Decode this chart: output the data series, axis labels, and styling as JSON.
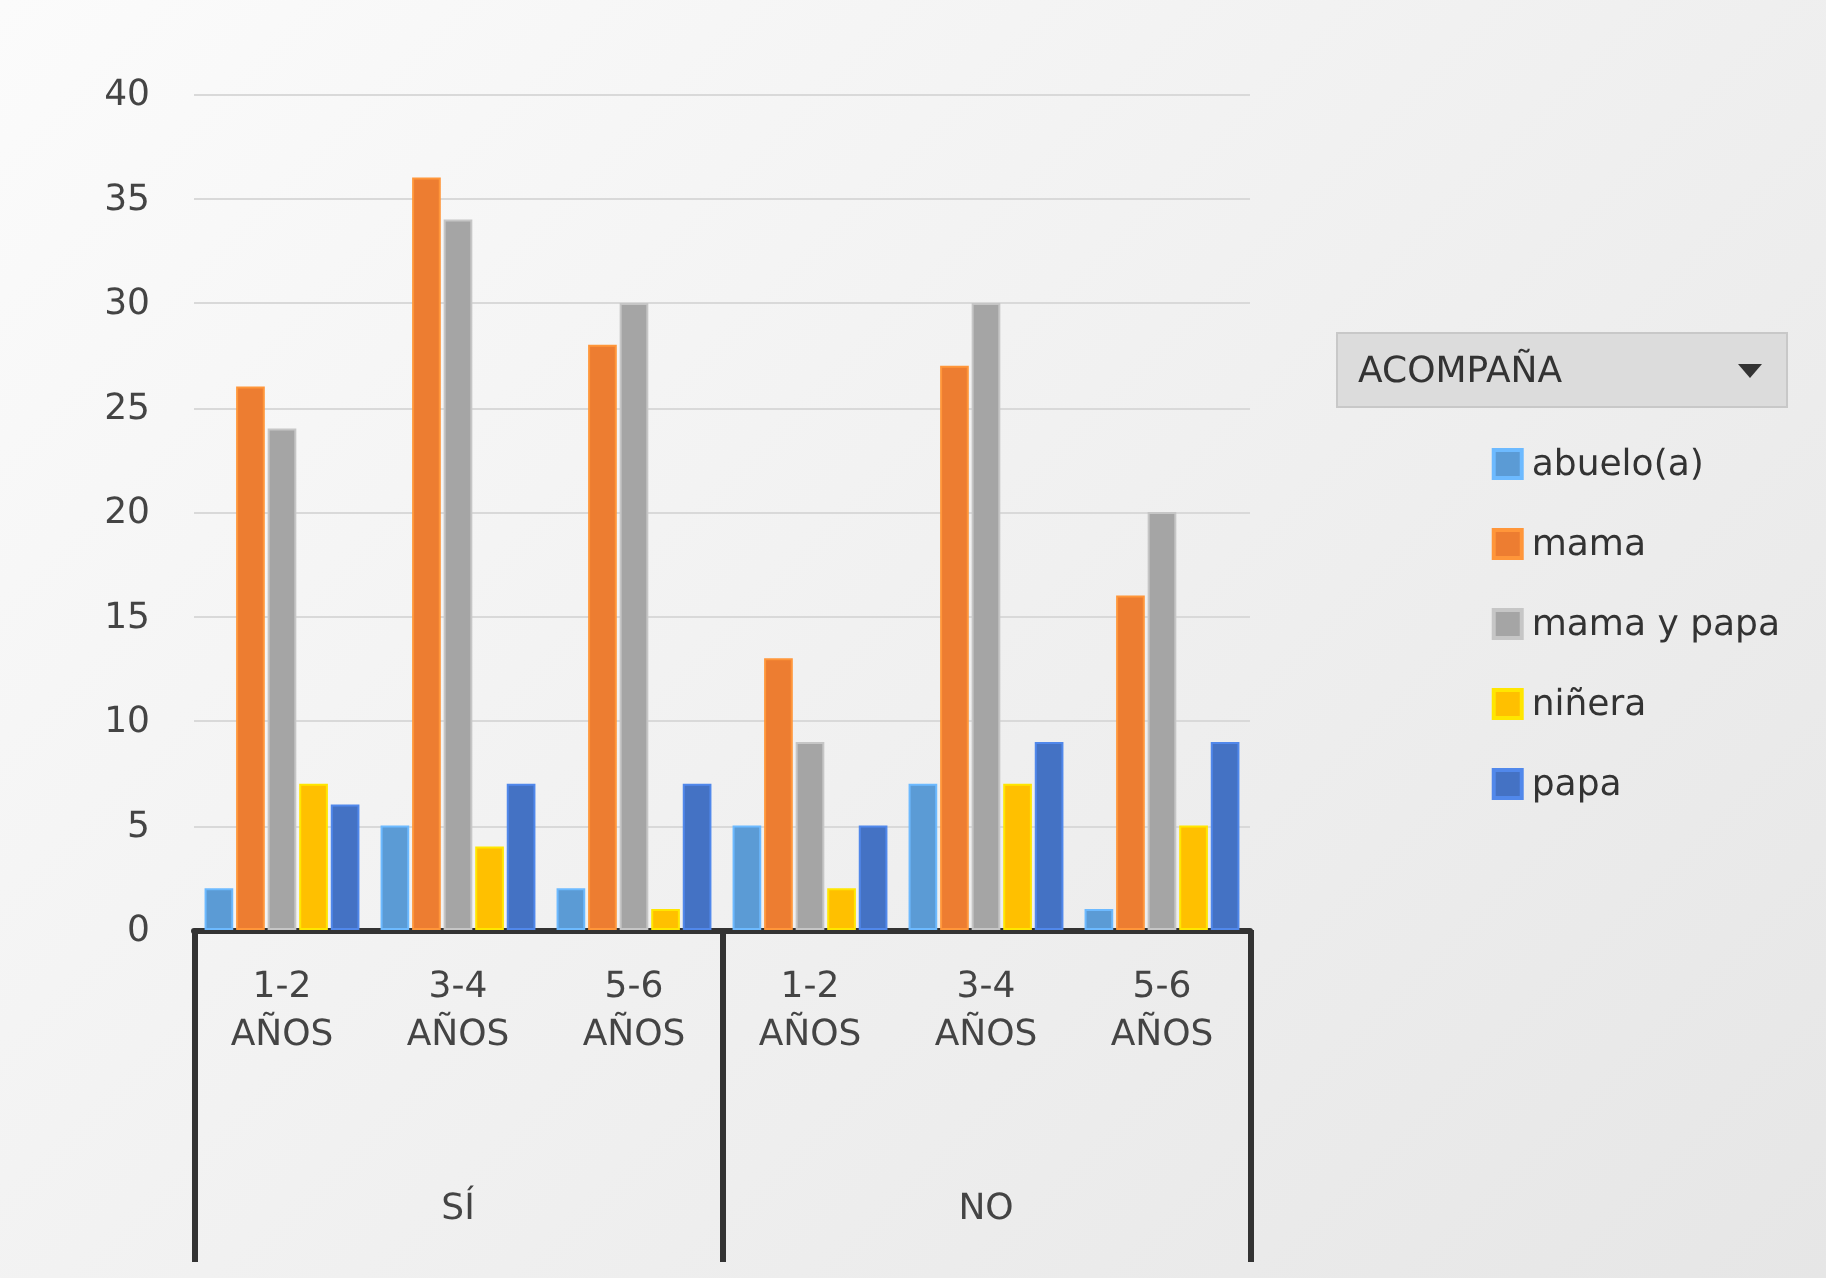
{
  "chart_data": {
    "type": "bar",
    "categories": [
      "1-2 AÑOS",
      "3-4 AÑOS",
      "5-6 AÑOS",
      "1-2 AÑOS",
      "3-4 AÑOS",
      "5-6 AÑOS"
    ],
    "annotations": [
      "SÍ",
      "NO"
    ],
    "legend_title": "ACOMPAÑA",
    "series": [
      {
        "name": "abuelo(a)",
        "color": "#5b9bd5",
        "values": [
          2,
          5,
          2,
          5,
          7,
          1
        ]
      },
      {
        "name": "mama",
        "color": "#ed7d31",
        "values": [
          26,
          36,
          28,
          13,
          27,
          16
        ]
      },
      {
        "name": "mama y papa",
        "color": "#a5a5a5",
        "values": [
          24,
          34,
          30,
          9,
          30,
          20
        ]
      },
      {
        "name": "niñera",
        "color": "#ffc000",
        "values": [
          7,
          4,
          1,
          2,
          7,
          5
        ]
      },
      {
        "name": "papa",
        "color": "#4472c4",
        "values": [
          6,
          7,
          7,
          5,
          9,
          9
        ]
      }
    ],
    "ylim": [
      0,
      40
    ],
    "yticks": [
      0,
      5,
      10,
      15,
      20,
      25,
      30,
      35,
      40
    ],
    "grid": "y",
    "legend": "right"
  }
}
